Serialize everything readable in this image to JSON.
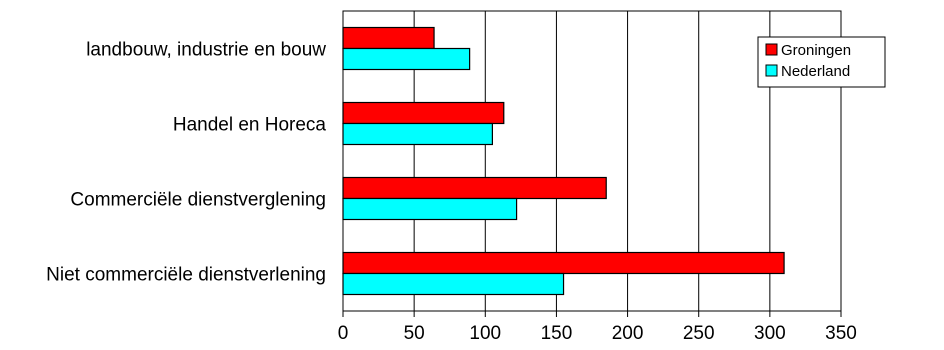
{
  "chart_data": {
    "type": "bar",
    "orientation": "horizontal",
    "categories": [
      "landbouw, industrie en bouw",
      "Handel en Horeca",
      "Commerciële dienstverglening",
      "Niet commerciële dienstverlening"
    ],
    "series": [
      {
        "name": "Groningen",
        "color": "#ff0000",
        "values": [
          64,
          113,
          185,
          310
        ]
      },
      {
        "name": "Nederland",
        "color": "#00ffff",
        "values": [
          89,
          105,
          122,
          155
        ]
      }
    ],
    "xlim": [
      0,
      350
    ],
    "xticks": [
      "0",
      "50",
      "100",
      "150",
      "200",
      "250",
      "300",
      "350"
    ],
    "grid": "vertical",
    "legend_position": "top-right",
    "title": "",
    "xlabel": "",
    "ylabel": ""
  }
}
